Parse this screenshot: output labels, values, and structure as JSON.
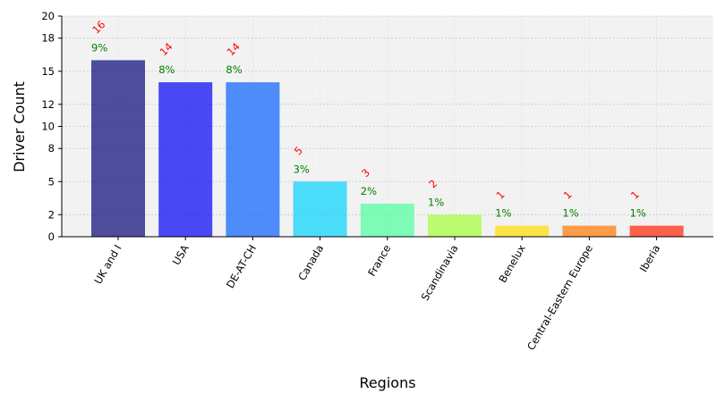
{
  "chart_data": {
    "type": "bar",
    "xlabel": "Regions",
    "ylabel": "Driver Count",
    "ylim": [
      0,
      20
    ],
    "yticks": [
      0,
      2,
      5,
      8,
      10,
      12,
      15,
      18,
      20
    ],
    "grid": true,
    "categories": [
      "UK and I",
      "USA",
      "DE-AT-CH",
      "Canada",
      "France",
      "Scandinavia",
      "Benelux",
      "Central-Eastern Europe",
      "Iberia"
    ],
    "values": [
      16,
      14,
      14,
      5,
      3,
      2,
      1,
      1,
      1
    ],
    "count_labels": [
      "16",
      "14",
      "14",
      "5",
      "3",
      "2",
      "1",
      "1",
      "1"
    ],
    "percent_labels": [
      "9%",
      "8%",
      "8%",
      "3%",
      "2%",
      "1%",
      "1%",
      "1%",
      "1%"
    ],
    "colors": [
      "#16167f",
      "#0f0ff5",
      "#1669fc",
      "#13d4fb",
      "#56fda3",
      "#a8fd41",
      "#fedf0d",
      "#fe7f0f",
      "#fc2f12"
    ],
    "count_label_color": "#ff0000",
    "percent_label_color": "#008000",
    "plot_background": "#f2f2f2"
  }
}
